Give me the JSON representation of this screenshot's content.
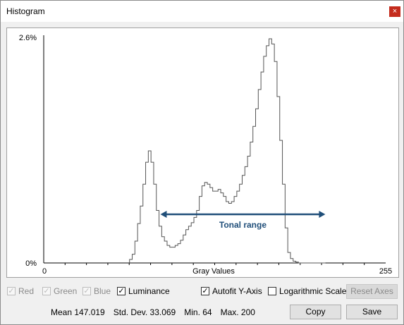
{
  "window": {
    "title": "Histogram",
    "close_symbol": "×"
  },
  "histogram": {
    "y_max_label": "2.6%",
    "y_min_label": "0%",
    "x_min_label": "0",
    "x_max_label": "255",
    "x_axis_title": "Gray Values",
    "annotation": "Tonal range",
    "annotation_color": "#1f4e79",
    "annotation_range": [
      87,
      210
    ],
    "chart_data": {
      "type": "area",
      "xlabel": "Gray Values",
      "xlim": [
        0,
        255
      ],
      "ylim": [
        0,
        2.6
      ],
      "x": [
        64,
        66,
        68,
        70,
        72,
        74,
        76,
        78,
        80,
        82,
        84,
        86,
        88,
        90,
        92,
        94,
        96,
        98,
        100,
        102,
        104,
        106,
        108,
        110,
        112,
        114,
        116,
        118,
        120,
        122,
        124,
        126,
        128,
        130,
        132,
        134,
        136,
        138,
        140,
        142,
        144,
        146,
        148,
        150,
        152,
        154,
        156,
        158,
        160,
        162,
        164,
        166,
        168,
        170,
        172,
        174,
        176,
        178,
        180,
        182,
        184,
        186,
        188,
        190,
        192,
        194,
        196,
        198,
        200,
        202,
        204,
        206,
        208
      ],
      "y": [
        0.04,
        0.1,
        0.25,
        0.45,
        0.65,
        0.9,
        1.15,
        1.28,
        1.15,
        0.9,
        0.6,
        0.42,
        0.3,
        0.25,
        0.2,
        0.18,
        0.18,
        0.2,
        0.22,
        0.26,
        0.32,
        0.38,
        0.42,
        0.46,
        0.52,
        0.6,
        0.76,
        0.88,
        0.92,
        0.9,
        0.86,
        0.82,
        0.82,
        0.84,
        0.8,
        0.76,
        0.7,
        0.68,
        0.7,
        0.76,
        0.82,
        0.9,
        1.0,
        1.1,
        1.22,
        1.38,
        1.56,
        1.76,
        1.98,
        2.18,
        2.36,
        2.48,
        2.56,
        2.5,
        2.3,
        1.9,
        1.4,
        0.9,
        0.4,
        0.12,
        0.05,
        0.02,
        0.01,
        0.0,
        0.0,
        0.0,
        0.0,
        0.0,
        0.0,
        0.0,
        0.0,
        0.0,
        0.0
      ]
    }
  },
  "channels": [
    {
      "label": "Red",
      "checked": true,
      "disabled": true
    },
    {
      "label": "Green",
      "checked": true,
      "disabled": true
    },
    {
      "label": "Blue",
      "checked": true,
      "disabled": true
    },
    {
      "label": "Luminance",
      "checked": true,
      "disabled": false
    }
  ],
  "options": {
    "autofit_label": "Autofit Y-Axis",
    "autofit_checked": true,
    "log_label": "Logarithmic Scale",
    "log_checked": false,
    "reset_axes_label": "Reset Axes"
  },
  "stats": {
    "mean": "Mean 147.019",
    "std_dev": "Std. Dev. 33.069",
    "min": "Min. 64",
    "max": "Max. 200"
  },
  "buttons": {
    "copy": "Copy",
    "save": "Save"
  },
  "check_mark": "✓"
}
